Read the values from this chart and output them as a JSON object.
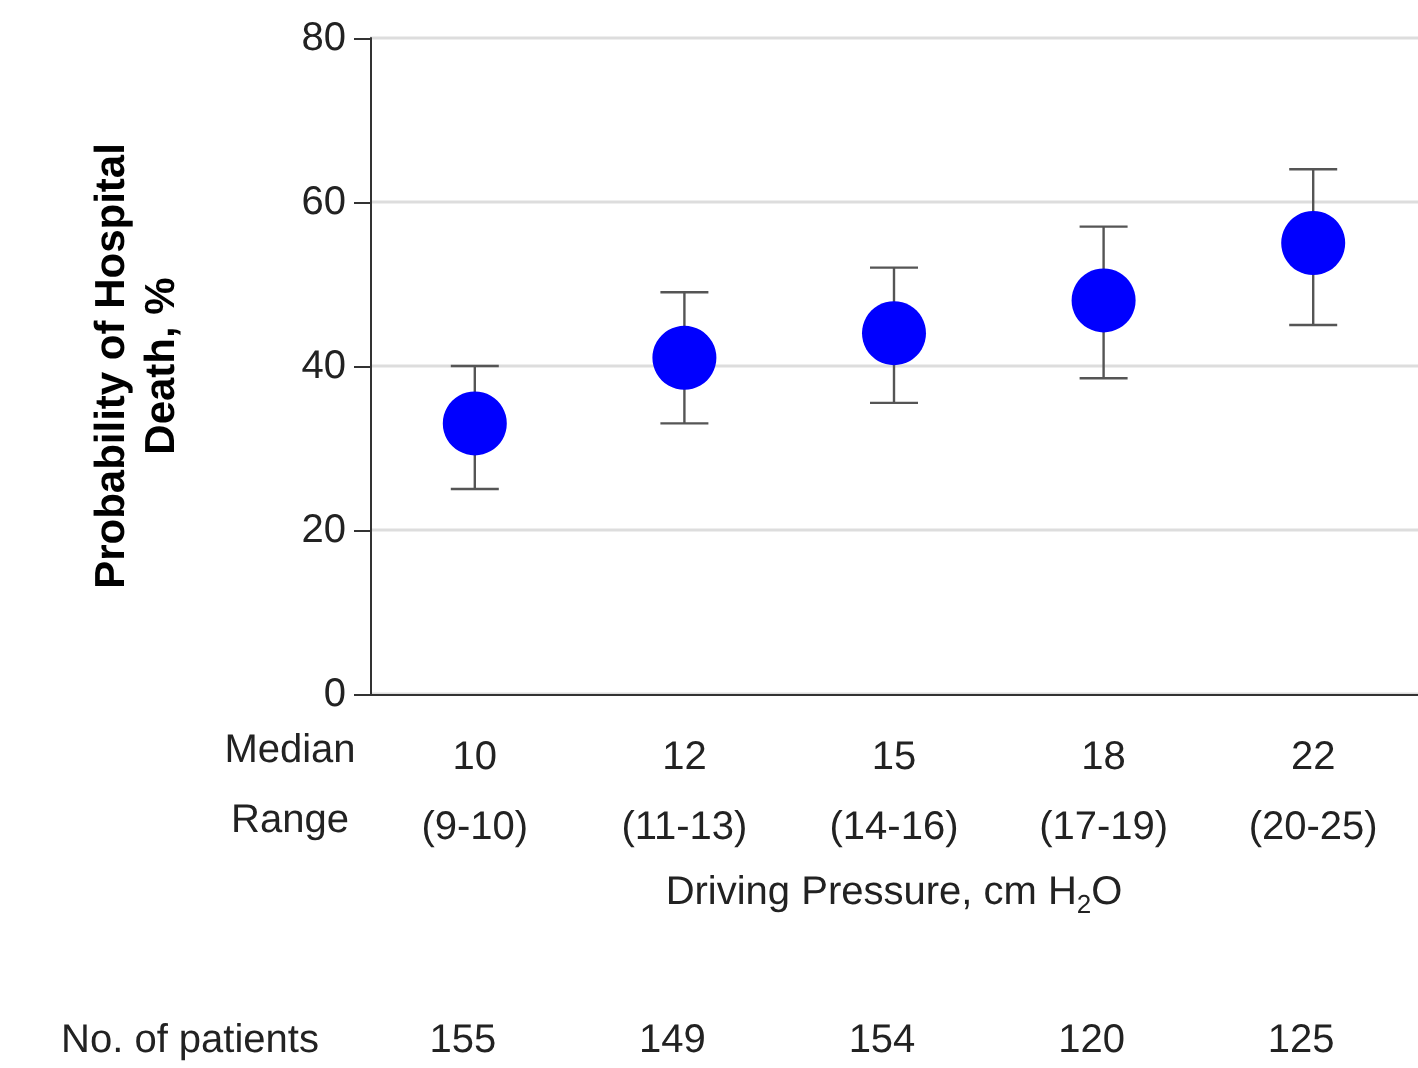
{
  "chart_data": {
    "type": "scatter",
    "xlabel": "Driving Pressure, cm H$_{2}$O",
    "ylabel": "Probability of Hospital\nDeath, %",
    "categories": [
      "10\n(9-10)",
      "12\n(11-13)",
      "15\n(14-16)",
      "18\n(17-19)",
      "22\n(20-25)"
    ],
    "series": [
      {
        "color": "#0000ff",
        "values": [
          33,
          41,
          44,
          48,
          55
        ],
        "errors": [
          [
            25,
            40
          ],
          [
            33,
            49
          ],
          [
            35.5,
            52
          ],
          [
            38.5,
            57
          ],
          [
            45,
            64
          ]
        ]
      }
    ],
    "ylim": [
      0,
      80
    ],
    "yticks": [
      0,
      20,
      40,
      60,
      80
    ],
    "grid": "y",
    "marker": "circle",
    "annotations": [
      "Median",
      "Range",
      "No. of patients",
      "155",
      "149",
      "154",
      "120",
      "125"
    ]
  }
}
